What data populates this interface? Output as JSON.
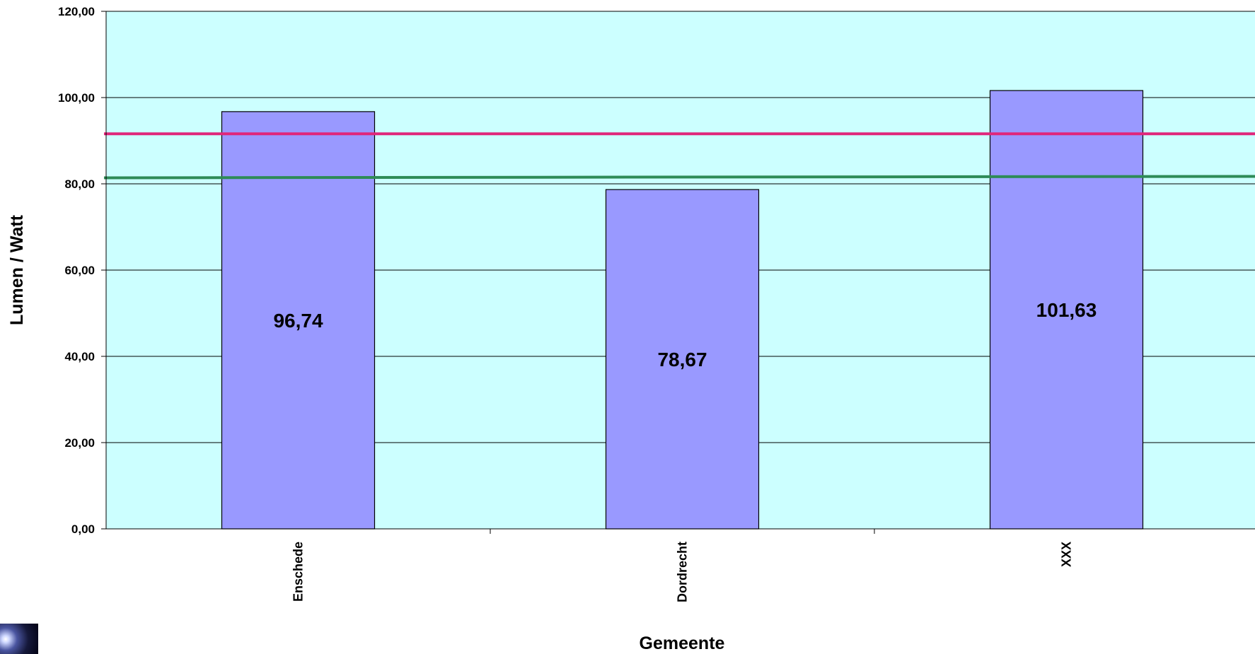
{
  "chart_data": {
    "type": "bar",
    "title": "",
    "xlabel": "Gemeente",
    "ylabel": "Lumen / Watt",
    "categories": [
      "Enschede",
      "Dordrecht",
      "XXX"
    ],
    "series": [
      {
        "values": [
          96.74,
          78.67,
          101.63
        ],
        "labels": [
          "96,74",
          "78,67",
          "101,63"
        ],
        "color": "#9999ff"
      }
    ],
    "reference_lines": [
      {
        "value": 91.6,
        "color": "#e0267a"
      },
      {
        "value": 81.4,
        "color": "#2e8b57"
      }
    ],
    "ylim": [
      0,
      120
    ],
    "ytick_values": [
      0,
      20,
      40,
      60,
      80,
      100,
      120
    ],
    "ytick_labels": [
      "0,00",
      "20,00",
      "40,00",
      "60,00",
      "80,00",
      "100,00",
      "120,00"
    ],
    "grid": true,
    "legend": "none",
    "plot_background": "#ccffff",
    "gridline_color": "#000000",
    "bar_outline_color": "#000000"
  }
}
